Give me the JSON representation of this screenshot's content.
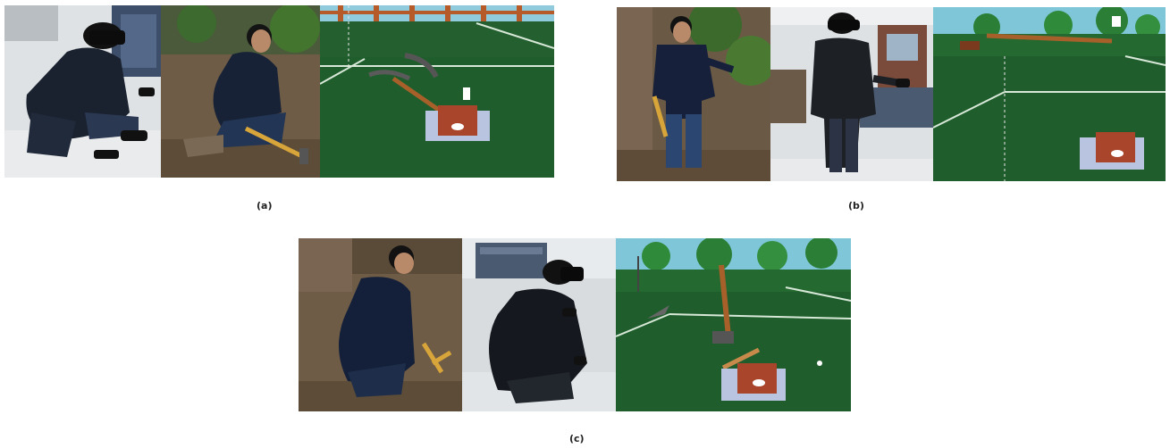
{
  "captions": {
    "a": "(a)",
    "b": "(b)",
    "c": "(c)"
  },
  "colors": {
    "grass": "#1f5e2c",
    "jacket": "#16202e",
    "soil": "#6b5a45",
    "floor": "#cfd3d6",
    "sky": "#7fc6d9",
    "stump": "#a8452a"
  }
}
